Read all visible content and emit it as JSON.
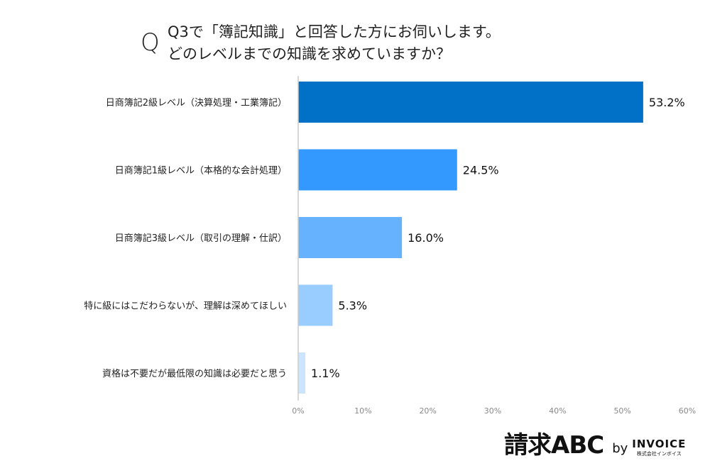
{
  "chart_data": {
    "type": "bar",
    "orientation": "horizontal",
    "title_prefix": "Q",
    "title_lines": [
      "Q3で「簿記知識」と回答した方にお伺いします。",
      "どのレベルまでの知識を求めていますか？"
    ],
    "categories": [
      "日商簿記2級レベル（決算処理・工業簿記）",
      "日商簿記1級レベル（本格的な会計処理）",
      "日商簿記3級レベル（取引の理解・仕訳）",
      "特に級にはこだわらないが、理解は深めてほしい",
      "資格は不要だが最低限の知識は必要だと思う"
    ],
    "values": [
      53.2,
      24.5,
      16.0,
      5.3,
      1.1
    ],
    "value_labels": [
      "53.2%",
      "24.5%",
      "16.0%",
      "5.3%",
      "1.1%"
    ],
    "colors": [
      "#0071C7",
      "#3399FF",
      "#66B2FF",
      "#99CCFF",
      "#CCE5FF"
    ],
    "xlim": [
      0,
      60
    ],
    "xticks": [
      "0%",
      "10%",
      "20%",
      "30%",
      "40%",
      "50%",
      "60%"
    ],
    "grid": false
  },
  "logo": {
    "main": "請求ABC",
    "by": "by",
    "company": "INVOICE",
    "company_sub": "株式会社インボイス"
  }
}
